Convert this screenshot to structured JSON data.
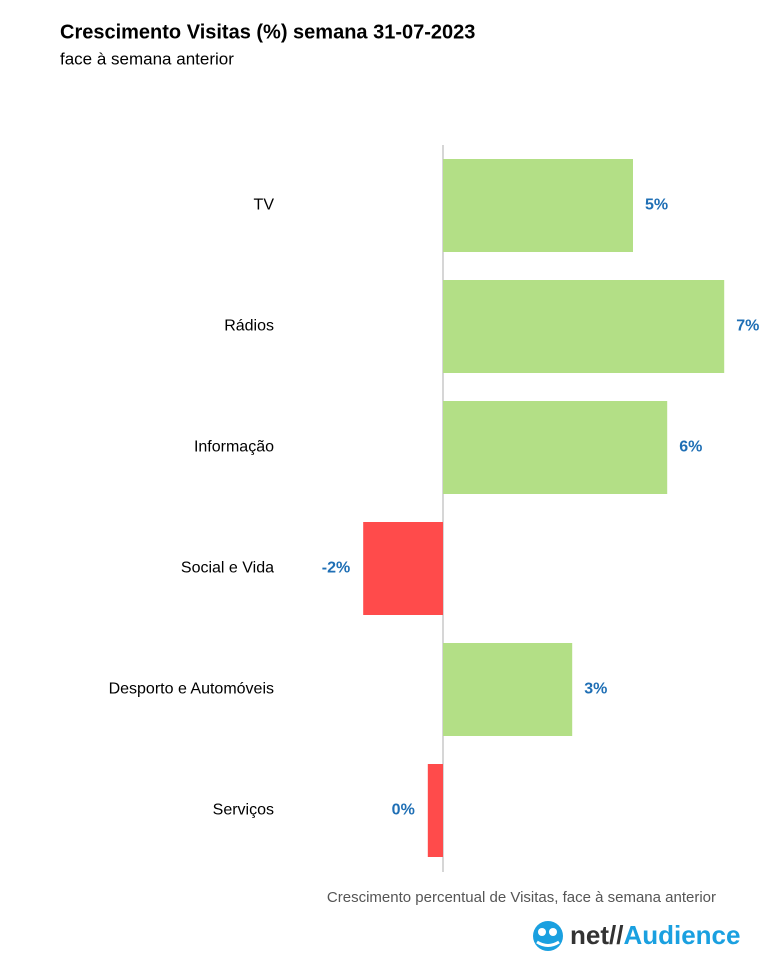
{
  "chart_data": {
    "type": "barh",
    "title": "Crescimento Visitas (%) semana 31-07-2023",
    "subtitle": "face à semana anterior",
    "xlabel": "Crescimento percentual de Visitas, face à semana anterior",
    "categories": [
      "TV",
      "Rádios",
      "Informação",
      "Social e Vida",
      "Desporto e Automóveis",
      "Serviços"
    ],
    "values": [
      5.0,
      7.4,
      5.9,
      -2.1,
      3.4,
      -0.4
    ],
    "value_labels": [
      "5%",
      "7%",
      "6%",
      "-2%",
      "3%",
      "0%"
    ],
    "color": "#b3df86",
    "negative_color": "#ff4b4b",
    "label_color": "#1f6fb5"
  },
  "logo": {
    "prefix": "net//",
    "name": "Audience"
  }
}
